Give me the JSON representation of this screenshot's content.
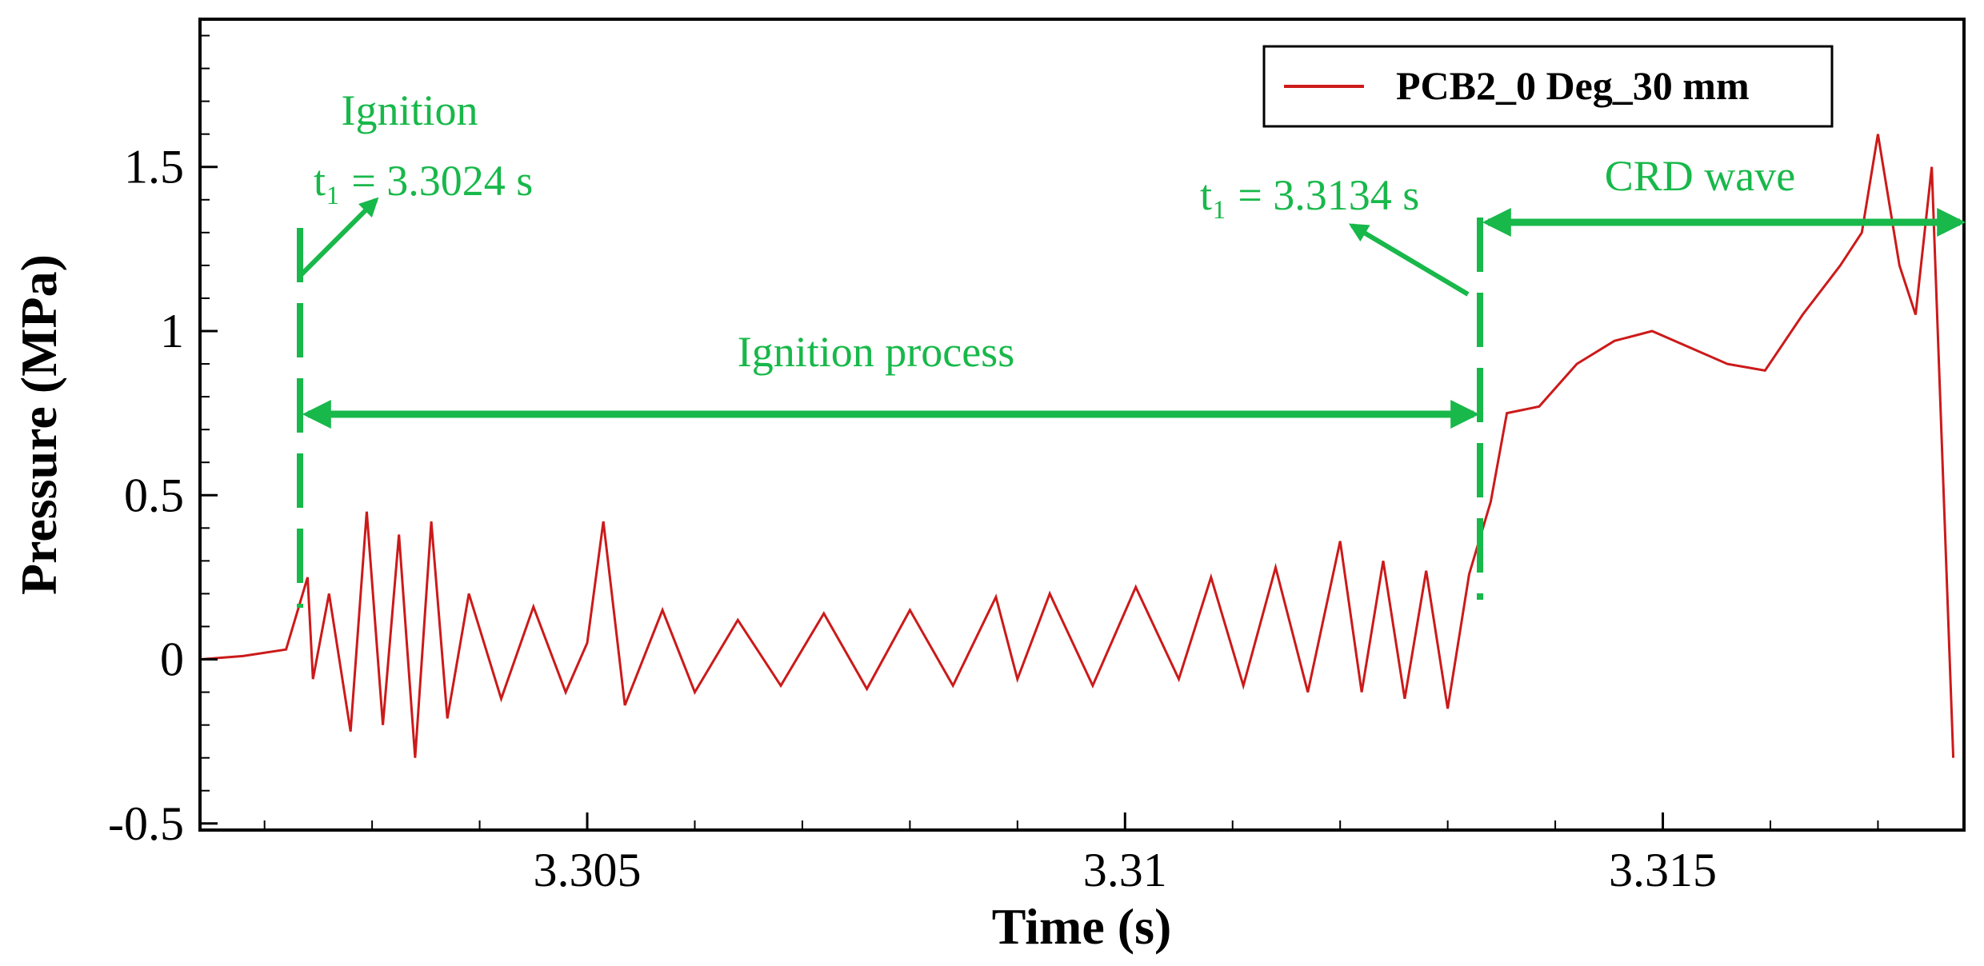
{
  "chart_data": {
    "type": "line",
    "title": "",
    "xlabel": "Time (s)",
    "ylabel": "Pressure (MPa)",
    "xlim": [
      3.3014,
      3.3178
    ],
    "ylim": [
      -0.52,
      1.95
    ],
    "x_ticks": [
      3.305,
      3.31,
      3.315
    ],
    "x_tick_labels": [
      "3.305",
      "3.31",
      "3.315"
    ],
    "y_ticks": [
      -0.5,
      0,
      0.5,
      1,
      1.5
    ],
    "y_tick_labels": [
      "-0.5",
      "0",
      "0.5",
      "1",
      "1.5"
    ],
    "grid": false,
    "legend": {
      "position": "top-right",
      "entries": [
        "PCB2_0 Deg_30 mm"
      ]
    },
    "series": [
      {
        "name": "PCB2_0 Deg_30 mm",
        "color": "#cc1a1a",
        "x": [
          3.3014,
          3.3018,
          3.3022,
          3.3024,
          3.30245,
          3.3026,
          3.3028,
          3.30295,
          3.3031,
          3.30325,
          3.3034,
          3.30355,
          3.3037,
          3.3039,
          3.3042,
          3.3045,
          3.3048,
          3.305,
          3.30515,
          3.30535,
          3.3057,
          3.306,
          3.3064,
          3.3068,
          3.3072,
          3.3076,
          3.308,
          3.3084,
          3.3088,
          3.309,
          3.3093,
          3.3097,
          3.3101,
          3.3105,
          3.3108,
          3.3111,
          3.3114,
          3.3117,
          3.312,
          3.3122,
          3.3124,
          3.3126,
          3.3128,
          3.313,
          3.3132,
          3.3134,
          3.31355,
          3.31385,
          3.3142,
          3.31455,
          3.3149,
          3.31525,
          3.3156,
          3.31595,
          3.3163,
          3.31665,
          3.31685,
          3.317,
          3.3172,
          3.31735,
          3.3175,
          3.3177
        ],
        "y": [
          0,
          0.01,
          0.03,
          0.25,
          -0.06,
          0.2,
          -0.22,
          0.45,
          -0.2,
          0.38,
          -0.3,
          0.42,
          -0.18,
          0.2,
          -0.12,
          0.16,
          -0.1,
          0.05,
          0.42,
          -0.14,
          0.15,
          -0.1,
          0.12,
          -0.08,
          0.14,
          -0.09,
          0.15,
          -0.08,
          0.19,
          -0.06,
          0.2,
          -0.08,
          0.22,
          -0.06,
          0.25,
          -0.08,
          0.28,
          -0.1,
          0.36,
          -0.1,
          0.3,
          -0.12,
          0.27,
          -0.15,
          0.26,
          0.48,
          0.75,
          0.77,
          0.9,
          0.97,
          1.0,
          0.95,
          0.9,
          0.88,
          1.05,
          1.2,
          1.3,
          1.6,
          1.2,
          1.05,
          1.5,
          -0.3
        ]
      }
    ],
    "annotations": [
      {
        "text": "Ignition",
        "x": 3.3024,
        "y": 1.65
      },
      {
        "text": "t₁ = 3.3024 s",
        "x": 3.3024,
        "y": 1.45
      },
      {
        "text": "t₁ = 3.3134 s",
        "x": 3.3134,
        "y": 1.4
      },
      {
        "text": "CRD wave",
        "x": 3.3156,
        "y": 1.45
      },
      {
        "text": "Ignition process",
        "x": 3.3079,
        "y": 0.92
      }
    ],
    "markers": [
      {
        "label": "ignition-start",
        "x": 3.3024
      },
      {
        "label": "crd-start",
        "x": 3.3134
      }
    ],
    "colors": {
      "trace": "#cc1a1a",
      "annotation": "#18b84a",
      "axis": "#000000"
    }
  }
}
